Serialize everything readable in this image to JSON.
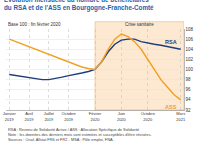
{
  "chart_data": {
    "type": "line",
    "title": "Évolution mensuelle du nombre de bénéficiaires\ndu RSA et de l'ASS en Bourgogne-Franche-Comté",
    "subtitle": "Base 100 : fin février 2020",
    "categories": [
      "Janvier 2019",
      null,
      null,
      "Avril 2019",
      null,
      null,
      "Juillet 2019",
      null,
      null,
      "Octobre 2019",
      null,
      null,
      null,
      "Février 2020",
      null,
      null,
      null,
      "Juin 2020",
      null,
      null,
      null,
      "Octobre 2020",
      null,
      null,
      null,
      null,
      "Mars 2021"
    ],
    "series": [
      {
        "name": "RSA",
        "color": "#1f3d7a",
        "values": [
          99.0,
          98.8,
          98.6,
          98.4,
          98.2,
          98.0,
          98.0,
          98.2,
          98.5,
          98.8,
          99.0,
          99.3,
          99.6,
          100.0,
          101.5,
          103.5,
          105.0,
          105.8,
          106.0,
          106.0,
          105.5,
          105.2,
          105.0,
          104.8,
          104.5,
          104.3,
          104.0
        ]
      },
      {
        "name": "ASS",
        "color": "#f0a020",
        "values": [
          106.0,
          105.5,
          105.0,
          104.5,
          104.0,
          103.5,
          103.0,
          102.5,
          102.0,
          101.5,
          101.0,
          100.5,
          100.2,
          100.0,
          101.5,
          104.0,
          106.0,
          107.0,
          106.5,
          105.5,
          104.0,
          102.0,
          100.0,
          98.0,
          96.5,
          95.0,
          94.0
        ]
      }
    ],
    "ylim": [
      92,
      108
    ],
    "yticks": [
      92,
      94,
      96,
      98,
      100,
      102,
      104,
      106,
      108
    ],
    "grid": true,
    "annotations": [
      {
        "text": "Crise sanitaire",
        "x_from": "Février 2020"
      }
    ],
    "notes": [
      "RSA : Revenu de Solidarité Active / ASS : Allocation Spécifique de Solidarité",
      "Note : les données des derniers mois sont estimées et susceptibles d'être révisées.",
      "Sources : Cnaf, Allstat FR6 et FR2 - MSA ; Pôle emploi, FNA."
    ]
  }
}
